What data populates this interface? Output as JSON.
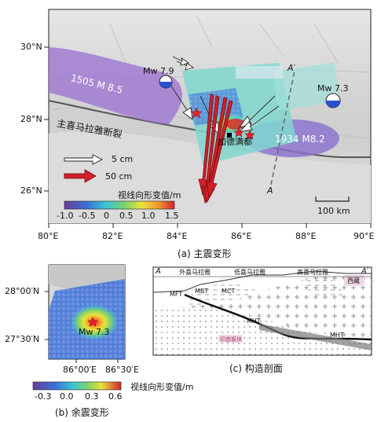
{
  "panel_a": {
    "caption": "(a) 主震变形",
    "lat_labels": [
      "30°N",
      "28°N",
      "26°N"
    ],
    "lon_labels": [
      "80°E",
      "82°E",
      "84°E",
      "86°E",
      "88°E",
      "90°E"
    ],
    "label_1505": "1505 M 8.5",
    "label_1934": "1934 M8.2",
    "fault_label": "主喜马拉雅断裂",
    "city_label": "加德满都",
    "mw79": "Mw 7.9",
    "mw73": "Mw 7.3",
    "a_label": "A",
    "a_prime_label": "A′",
    "arrow_5cm": "5 cm",
    "arrow_50cm": "50 cm",
    "scale_label": "100 km",
    "colorbar_title": "视线向形变值/m",
    "colorbar_ticks": [
      "-1.0",
      "-0.5",
      "0",
      "0.5",
      "1.0",
      "1.5"
    ]
  },
  "panel_b": {
    "caption": "(b) 余震变形",
    "lat_labels": [
      "28°00′N",
      "27°30′N"
    ],
    "lon_labels": [
      "86°00′E",
      "86°30′E"
    ],
    "mw": "Mw 7.3",
    "colorbar_title": "视线向形变值/m",
    "colorbar_ticks": [
      "-0.3",
      "0.0",
      "0.3",
      "0.6"
    ]
  },
  "panel_c": {
    "caption": "(c) 构造剖面",
    "a_label": "A",
    "a_prime_label": "A′",
    "zone1": "外喜马拉雅",
    "zone2": "低喜马拉雅",
    "zone3": "高喜马拉雅",
    "tibet": "西藏",
    "mft": "MFT",
    "mbt": "MBT",
    "mct": "MCT",
    "mht": "MHT",
    "mht2": "MHT",
    "indian_plate": "印度板块"
  },
  "colors": {
    "rupture_1505": "#9b6fd1",
    "rupture_1934": "#8a6fd1",
    "big_arrow": "#d0202a",
    "insar_base": "#7fd8d0"
  }
}
